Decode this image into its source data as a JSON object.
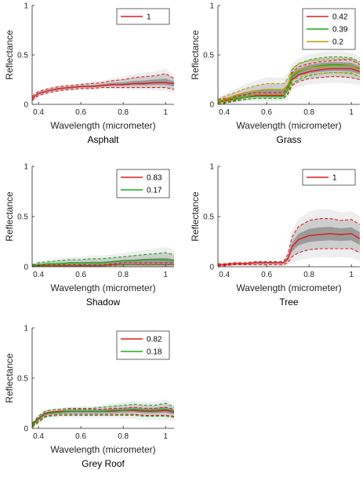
{
  "chart_data": [
    {
      "type": "line",
      "title": "Asphalt",
      "xlabel": "Wavelength (micrometer)",
      "ylabel": "Reflectance",
      "xlim": [
        0.37,
        1.04
      ],
      "ylim": [
        0,
        1
      ],
      "xticks": [
        "0.4",
        "0.6",
        "0.8",
        "1"
      ],
      "yticks": [
        "0",
        "0.5",
        "1"
      ],
      "legend_position": "top-right",
      "series": [
        {
          "name": "1",
          "color": "#e41a1c",
          "x": [
            0.37,
            0.4,
            0.45,
            0.5,
            0.55,
            0.6,
            0.65,
            0.7,
            0.75,
            0.8,
            0.85,
            0.9,
            0.95,
            1.0,
            1.04
          ],
          "mean": [
            0.06,
            0.11,
            0.14,
            0.16,
            0.17,
            0.18,
            0.18,
            0.19,
            0.2,
            0.2,
            0.21,
            0.21,
            0.22,
            0.22,
            0.21
          ],
          "upper": [
            0.08,
            0.13,
            0.16,
            0.18,
            0.19,
            0.2,
            0.21,
            0.22,
            0.24,
            0.25,
            0.27,
            0.28,
            0.29,
            0.31,
            0.26
          ],
          "lower": [
            0.04,
            0.09,
            0.12,
            0.14,
            0.15,
            0.16,
            0.16,
            0.17,
            0.17,
            0.17,
            0.17,
            0.17,
            0.17,
            0.17,
            0.15
          ]
        }
      ]
    },
    {
      "type": "line",
      "title": "Grass",
      "xlabel": "Wavelength (micrometer)",
      "ylabel": "Reflectance",
      "xlim": [
        0.37,
        1.04
      ],
      "ylim": [
        0,
        1
      ],
      "xticks": [
        "0.4",
        "0.6",
        "0.8",
        "1"
      ],
      "yticks": [
        "0",
        "0.5",
        "1"
      ],
      "legend_position": "top-right",
      "series": [
        {
          "name": "0.42",
          "color": "#e41a1c",
          "x": [
            0.37,
            0.4,
            0.45,
            0.5,
            0.55,
            0.6,
            0.65,
            0.68,
            0.7,
            0.72,
            0.75,
            0.8,
            0.85,
            0.9,
            0.95,
            1.0,
            1.04
          ],
          "mean": [
            0.03,
            0.04,
            0.06,
            0.07,
            0.09,
            0.09,
            0.09,
            0.09,
            0.14,
            0.25,
            0.3,
            0.33,
            0.35,
            0.36,
            0.36,
            0.36,
            0.33
          ],
          "upper": [
            0.05,
            0.06,
            0.08,
            0.1,
            0.12,
            0.12,
            0.12,
            0.12,
            0.18,
            0.32,
            0.38,
            0.41,
            0.43,
            0.44,
            0.45,
            0.45,
            0.4
          ],
          "lower": [
            0.01,
            0.02,
            0.04,
            0.05,
            0.06,
            0.06,
            0.06,
            0.06,
            0.1,
            0.19,
            0.23,
            0.26,
            0.27,
            0.28,
            0.28,
            0.27,
            0.25
          ]
        },
        {
          "name": "0.39",
          "color": "#1aab1a",
          "x": [
            0.37,
            0.4,
            0.45,
            0.5,
            0.55,
            0.6,
            0.65,
            0.68,
            0.7,
            0.72,
            0.75,
            0.8,
            0.85,
            0.9,
            0.95,
            1.0,
            1.04
          ],
          "mean": [
            0.02,
            0.03,
            0.05,
            0.07,
            0.08,
            0.08,
            0.08,
            0.08,
            0.15,
            0.28,
            0.33,
            0.37,
            0.39,
            0.4,
            0.4,
            0.39,
            0.36
          ],
          "upper": [
            0.04,
            0.05,
            0.07,
            0.09,
            0.1,
            0.1,
            0.1,
            0.1,
            0.19,
            0.35,
            0.41,
            0.45,
            0.47,
            0.48,
            0.48,
            0.47,
            0.43
          ],
          "lower": [
            0.0,
            0.01,
            0.03,
            0.05,
            0.06,
            0.06,
            0.06,
            0.06,
            0.11,
            0.21,
            0.25,
            0.29,
            0.31,
            0.32,
            0.32,
            0.31,
            0.28
          ]
        },
        {
          "name": "0.2",
          "color": "#b8a000",
          "x": [
            0.37,
            0.4,
            0.45,
            0.5,
            0.55,
            0.6,
            0.65,
            0.68,
            0.7,
            0.72,
            0.75,
            0.8,
            0.85,
            0.9,
            0.95,
            1.0,
            1.04
          ],
          "mean": [
            0.03,
            0.05,
            0.09,
            0.12,
            0.14,
            0.15,
            0.15,
            0.15,
            0.2,
            0.3,
            0.34,
            0.37,
            0.38,
            0.39,
            0.39,
            0.39,
            0.35
          ],
          "upper": [
            0.05,
            0.08,
            0.12,
            0.16,
            0.19,
            0.21,
            0.21,
            0.21,
            0.26,
            0.36,
            0.41,
            0.44,
            0.45,
            0.46,
            0.46,
            0.46,
            0.41
          ],
          "lower": [
            0.01,
            0.03,
            0.06,
            0.08,
            0.1,
            0.1,
            0.1,
            0.1,
            0.14,
            0.24,
            0.27,
            0.3,
            0.31,
            0.32,
            0.32,
            0.32,
            0.28
          ]
        }
      ]
    },
    {
      "type": "line",
      "title": "Shadow",
      "xlabel": "Wavelength (micrometer)",
      "ylabel": "Reflectance",
      "xlim": [
        0.37,
        1.04
      ],
      "ylim": [
        0,
        1
      ],
      "xticks": [
        "0.4",
        "0.6",
        "0.8",
        "1"
      ],
      "yticks": [
        "0",
        "0.5",
        "1"
      ],
      "legend_position": "top-right",
      "series": [
        {
          "name": "0.83",
          "color": "#e41a1c",
          "x": [
            0.37,
            0.4,
            0.45,
            0.5,
            0.55,
            0.6,
            0.65,
            0.7,
            0.75,
            0.8,
            0.85,
            0.9,
            0.95,
            1.0,
            1.04
          ],
          "mean": [
            0.01,
            0.01,
            0.01,
            0.01,
            0.01,
            0.01,
            0.01,
            0.01,
            0.02,
            0.02,
            0.02,
            0.02,
            0.02,
            0.02,
            0.02
          ],
          "upper": [
            0.02,
            0.02,
            0.02,
            0.02,
            0.02,
            0.02,
            0.02,
            0.02,
            0.03,
            0.04,
            0.04,
            0.04,
            0.04,
            0.04,
            0.04
          ],
          "lower": [
            0.0,
            0.0,
            0.0,
            0.0,
            0.0,
            0.0,
            0.0,
            0.0,
            0.0,
            0.0,
            0.0,
            0.0,
            0.0,
            0.0,
            0.0
          ]
        },
        {
          "name": "0.17",
          "color": "#1aab1a",
          "x": [
            0.37,
            0.4,
            0.45,
            0.5,
            0.55,
            0.6,
            0.65,
            0.7,
            0.75,
            0.8,
            0.85,
            0.9,
            0.95,
            1.0,
            1.04
          ],
          "mean": [
            0.01,
            0.02,
            0.03,
            0.03,
            0.04,
            0.04,
            0.04,
            0.04,
            0.05,
            0.06,
            0.06,
            0.07,
            0.07,
            0.07,
            0.06
          ],
          "upper": [
            0.02,
            0.04,
            0.05,
            0.06,
            0.07,
            0.07,
            0.08,
            0.08,
            0.09,
            0.1,
            0.11,
            0.12,
            0.13,
            0.14,
            0.12
          ],
          "lower": [
            0.0,
            0.0,
            0.01,
            0.01,
            0.01,
            0.01,
            0.01,
            0.01,
            0.01,
            0.02,
            0.02,
            0.02,
            0.02,
            0.02,
            0.02
          ]
        }
      ]
    },
    {
      "type": "line",
      "title": "Tree",
      "xlabel": "Wavelength (micrometer)",
      "ylabel": "Reflectance",
      "xlim": [
        0.37,
        1.04
      ],
      "ylim": [
        0,
        1
      ],
      "xticks": [
        "0.4",
        "0.6",
        "0.8",
        "1"
      ],
      "yticks": [
        "0",
        "0.5",
        "1"
      ],
      "legend_position": "top-right",
      "series": [
        {
          "name": "1",
          "color": "#e41a1c",
          "x": [
            0.37,
            0.4,
            0.45,
            0.5,
            0.55,
            0.6,
            0.65,
            0.68,
            0.7,
            0.72,
            0.75,
            0.8,
            0.85,
            0.9,
            0.95,
            1.0,
            1.04
          ],
          "mean": [
            0.02,
            0.02,
            0.03,
            0.03,
            0.04,
            0.04,
            0.04,
            0.04,
            0.08,
            0.2,
            0.27,
            0.31,
            0.32,
            0.33,
            0.32,
            0.33,
            0.28
          ],
          "upper": [
            0.03,
            0.03,
            0.04,
            0.04,
            0.05,
            0.05,
            0.05,
            0.05,
            0.12,
            0.3,
            0.4,
            0.46,
            0.48,
            0.48,
            0.46,
            0.47,
            0.42
          ],
          "lower": [
            0.01,
            0.01,
            0.02,
            0.02,
            0.02,
            0.02,
            0.02,
            0.02,
            0.04,
            0.1,
            0.14,
            0.17,
            0.18,
            0.18,
            0.18,
            0.18,
            0.14
          ]
        }
      ]
    },
    {
      "type": "line",
      "title": "Grey Roof",
      "xlabel": "Wavelength (micrometer)",
      "ylabel": "Reflectance",
      "xlim": [
        0.37,
        1.04
      ],
      "ylim": [
        0,
        1
      ],
      "xticks": [
        "0.4",
        "0.6",
        "0.8",
        "1"
      ],
      "yticks": [
        "0",
        "0.5",
        "1"
      ],
      "legend_position": "top-right",
      "series": [
        {
          "name": "0.82",
          "color": "#e41a1c",
          "x": [
            0.37,
            0.4,
            0.43,
            0.45,
            0.5,
            0.55,
            0.6,
            0.65,
            0.7,
            0.75,
            0.8,
            0.85,
            0.9,
            0.95,
            1.0,
            1.04
          ],
          "mean": [
            0.04,
            0.1,
            0.15,
            0.16,
            0.17,
            0.17,
            0.17,
            0.17,
            0.17,
            0.17,
            0.18,
            0.18,
            0.17,
            0.17,
            0.18,
            0.16
          ],
          "upper": [
            0.05,
            0.12,
            0.17,
            0.18,
            0.19,
            0.19,
            0.19,
            0.19,
            0.19,
            0.2,
            0.2,
            0.21,
            0.2,
            0.2,
            0.21,
            0.19
          ],
          "lower": [
            0.02,
            0.07,
            0.12,
            0.13,
            0.14,
            0.14,
            0.14,
            0.14,
            0.14,
            0.14,
            0.14,
            0.14,
            0.13,
            0.13,
            0.13,
            0.12
          ]
        },
        {
          "name": "0.18",
          "color": "#1aab1a",
          "x": [
            0.37,
            0.4,
            0.43,
            0.45,
            0.5,
            0.55,
            0.6,
            0.65,
            0.7,
            0.75,
            0.8,
            0.85,
            0.9,
            0.95,
            1.0,
            1.04
          ],
          "mean": [
            0.03,
            0.09,
            0.14,
            0.15,
            0.16,
            0.17,
            0.17,
            0.17,
            0.17,
            0.18,
            0.18,
            0.19,
            0.18,
            0.18,
            0.19,
            0.17
          ],
          "upper": [
            0.05,
            0.12,
            0.17,
            0.18,
            0.19,
            0.2,
            0.2,
            0.2,
            0.21,
            0.22,
            0.23,
            0.24,
            0.23,
            0.23,
            0.25,
            0.21
          ],
          "lower": [
            0.01,
            0.06,
            0.11,
            0.12,
            0.13,
            0.13,
            0.13,
            0.13,
            0.13,
            0.13,
            0.13,
            0.13,
            0.12,
            0.12,
            0.12,
            0.11
          ]
        }
      ]
    }
  ]
}
